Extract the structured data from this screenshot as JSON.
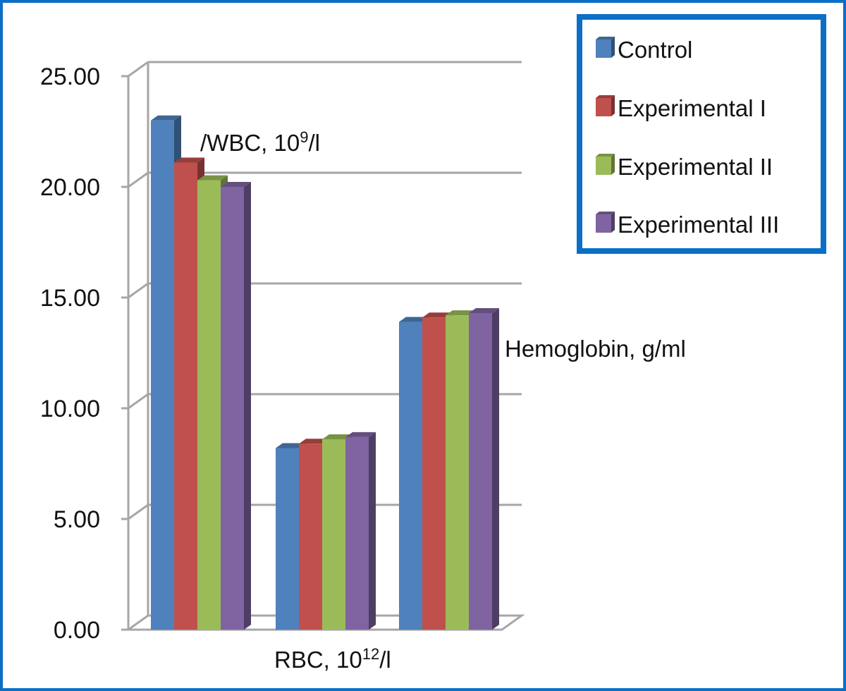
{
  "chart_data": {
    "type": "bar",
    "style": "3d-clustered-column",
    "categories": [
      {
        "label": "/WBC, 10",
        "sup": "9",
        "suffix": "/l"
      },
      {
        "label": "RBC, 10",
        "sup": "12",
        "suffix": "/l"
      },
      {
        "label": "Hemoglobin, g/ml",
        "sup": "",
        "suffix": ""
      }
    ],
    "series": [
      {
        "name": "Control",
        "color": "#4f81bd",
        "values": [
          23.0,
          8.2,
          13.9
        ]
      },
      {
        "name": "Experimental I",
        "color": "#c0504d",
        "values": [
          21.1,
          8.4,
          14.1
        ]
      },
      {
        "name": "Experimental II",
        "color": "#9bbb59",
        "values": [
          20.3,
          8.6,
          14.2
        ]
      },
      {
        "name": "Experimental III",
        "color": "#8064a2",
        "values": [
          20.0,
          8.7,
          14.3
        ]
      }
    ],
    "ylim": [
      0,
      25
    ],
    "yticks": [
      "0.00",
      "5.00",
      "10.00",
      "15.00",
      "20.00",
      "25.00"
    ],
    "grid": true,
    "legend_position": "top-right",
    "colors": {
      "frame_border": "#0b6fc6",
      "legend_border": "#0b6fc6",
      "gridline": "#a6a6a6"
    }
  }
}
